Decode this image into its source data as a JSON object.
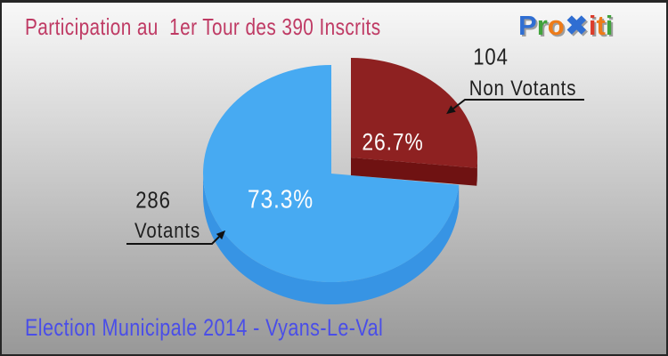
{
  "header": {
    "title": "Participation au  1er Tour des 390 Inscrits"
  },
  "logo": {
    "brand": "Proxiti",
    "letters": [
      {
        "ch": "P",
        "color": "#2f6ed2"
      },
      {
        "ch": "r",
        "color": "#41a33c"
      },
      {
        "ch": "o",
        "color": "#ee7b18"
      },
      {
        "ch": "✖",
        "color": "#2f6ed2",
        "bold": true
      },
      {
        "ch": "i",
        "color": "#dc3c2a"
      },
      {
        "ch": "t",
        "color": "#ee7b18"
      },
      {
        "ch": "i",
        "color": "#41a33c"
      }
    ]
  },
  "chart_data": {
    "type": "pie",
    "title": "Participation au 1er Tour des 390 Inscrits",
    "total": 390,
    "total_label": "390 Inscrits",
    "start_angle_deg": 90,
    "direction": "clockwise",
    "style": "3d-exploded",
    "slices": [
      {
        "label": "Non Votants",
        "value": 104,
        "value_label": "104",
        "pct": 26.7,
        "pct_label": "26.7%",
        "color": "#8e2121",
        "side_color": "#6f1212",
        "exploded": true
      },
      {
        "label": "Votants",
        "value": 286,
        "value_label": "286",
        "pct": 73.3,
        "pct_label": "73.3%",
        "color": "#47aaf2",
        "side_color": "#3794e4",
        "exploded": false
      }
    ]
  },
  "footer": {
    "subtitle": "Election Municipale 2014 - Vyans-Le-Val"
  },
  "colors": {
    "title": "#bf3a64",
    "subtitle": "#4a4ee8",
    "callout_text": "#1f1f1f",
    "leader_line": "#111111",
    "percent_text": "#fdfdfd",
    "background_top": "#f8f8f8",
    "background_bottom": "#989898"
  }
}
